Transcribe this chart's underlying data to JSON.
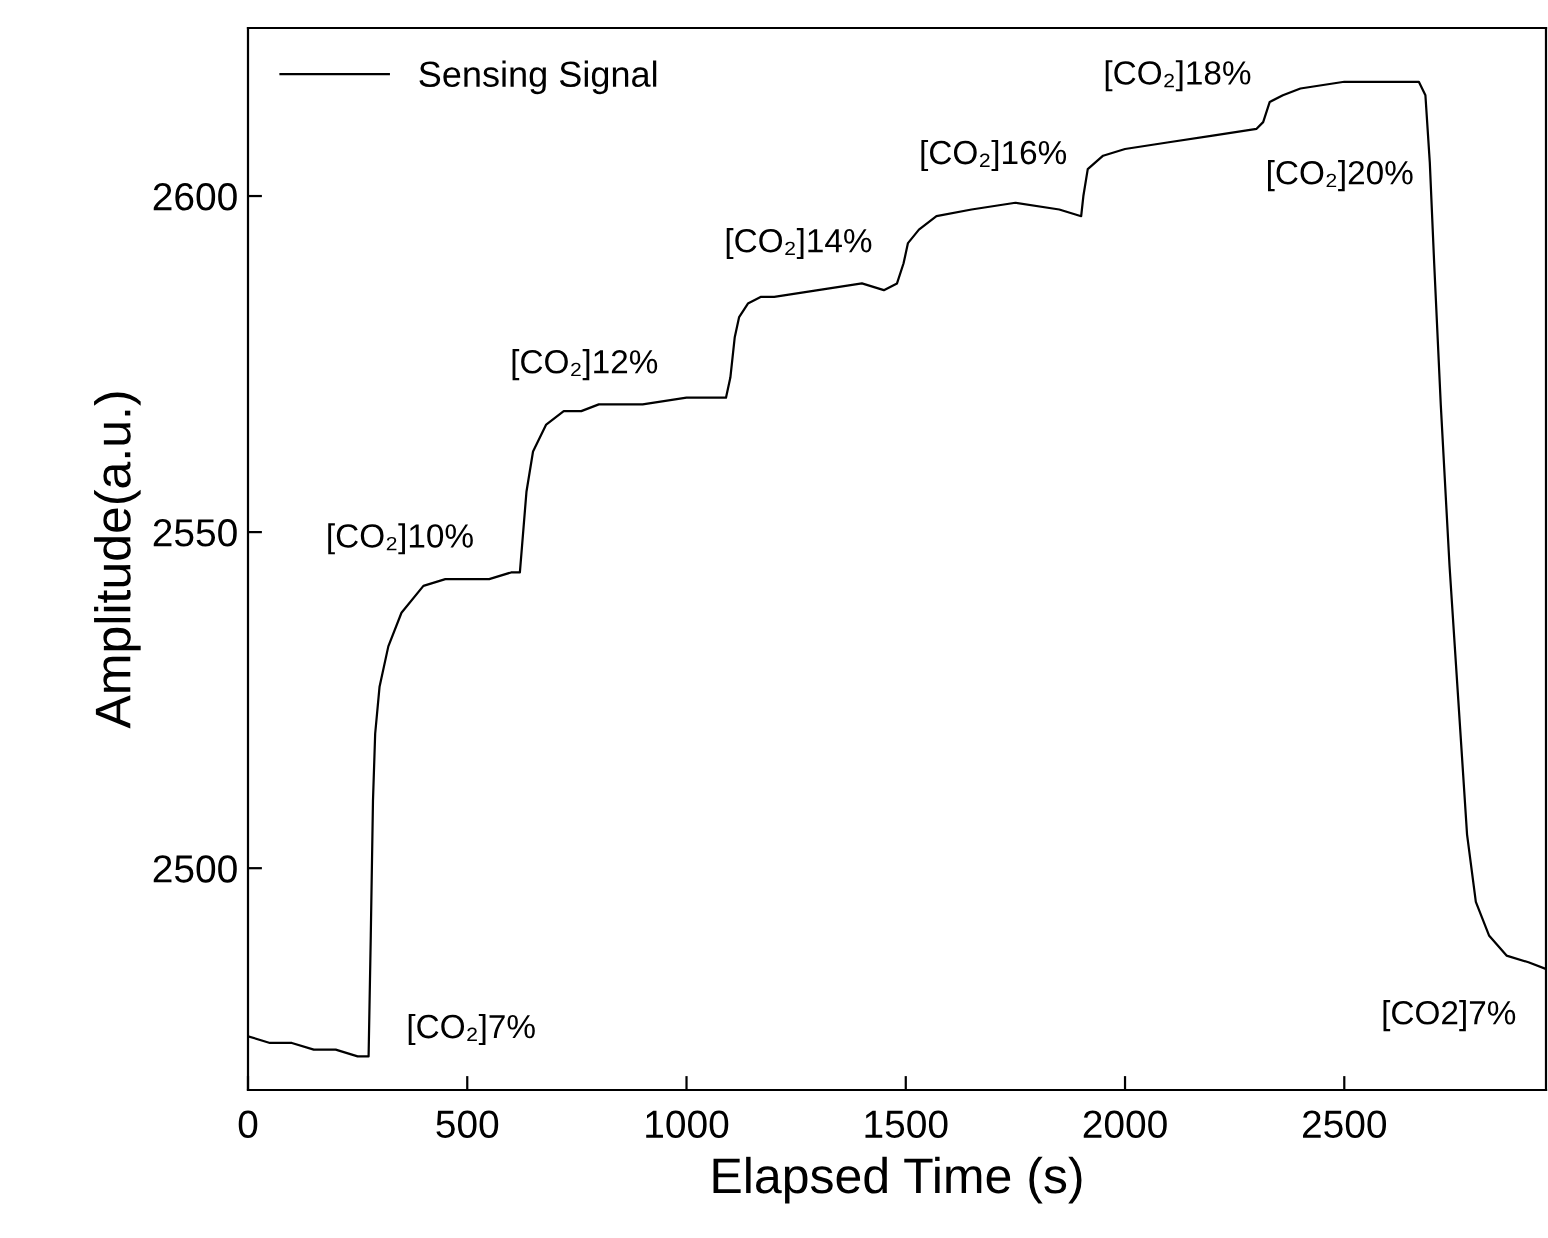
{
  "chart_data": {
    "type": "line",
    "xlabel": "Elapsed Time (s)",
    "ylabel": "Amplitude(a.u.)",
    "xlim": [
      0,
      2960
    ],
    "ylim": [
      2467,
      2625
    ],
    "xticks": [
      0,
      500,
      1000,
      1500,
      2000,
      2500
    ],
    "yticks": [
      2500,
      2550,
      2600
    ],
    "grid": false,
    "legend": "top left",
    "marker": "none",
    "line_style": "solid",
    "series": [
      {
        "name": "Sensing Signal",
        "color": "#000000",
        "x": [
          0,
          50,
          100,
          150,
          200,
          250,
          275,
          280,
          285,
          290,
          300,
          320,
          350,
          400,
          450,
          500,
          550,
          600,
          620,
          625,
          635,
          650,
          680,
          720,
          760,
          800,
          900,
          1000,
          1090,
          1100,
          1110,
          1120,
          1140,
          1170,
          1200,
          1300,
          1400,
          1450,
          1480,
          1495,
          1505,
          1530,
          1570,
          1650,
          1750,
          1850,
          1900,
          1905,
          1915,
          1950,
          2000,
          2100,
          2200,
          2300,
          2315,
          2330,
          2360,
          2400,
          2500,
          2600,
          2670,
          2685,
          2695,
          2705,
          2720,
          2740,
          2760,
          2780,
          2800,
          2830,
          2870,
          2920,
          2960
        ],
        "values": [
          2475,
          2474,
          2474,
          2473,
          2473,
          2472,
          2472,
          2490,
          2510,
          2520,
          2527,
          2533,
          2538,
          2542,
          2543,
          2543,
          2543,
          2544,
          2544,
          2548,
          2556,
          2562,
          2566,
          2568,
          2568,
          2569,
          2569,
          2570,
          2570,
          2573,
          2579,
          2582,
          2584,
          2585,
          2585,
          2586,
          2587,
          2586,
          2587,
          2590,
          2593,
          2595,
          2597,
          2598,
          2599,
          2598,
          2597,
          2600,
          2604,
          2606,
          2607,
          2608,
          2609,
          2610,
          2611,
          2614,
          2615,
          2616,
          2617,
          2617,
          2617,
          2615,
          2605,
          2590,
          2569,
          2545,
          2525,
          2505,
          2495,
          2490,
          2487,
          2486,
          2485
        ]
      }
    ],
    "annotations": [
      "[CO₂]7%",
      "[CO₂]10%",
      "[CO₂]12%",
      "[CO₂]14%",
      "[CO₂]16%",
      "[CO₂]18%",
      "[CO₂]20%",
      "[CO2]7%"
    ]
  }
}
